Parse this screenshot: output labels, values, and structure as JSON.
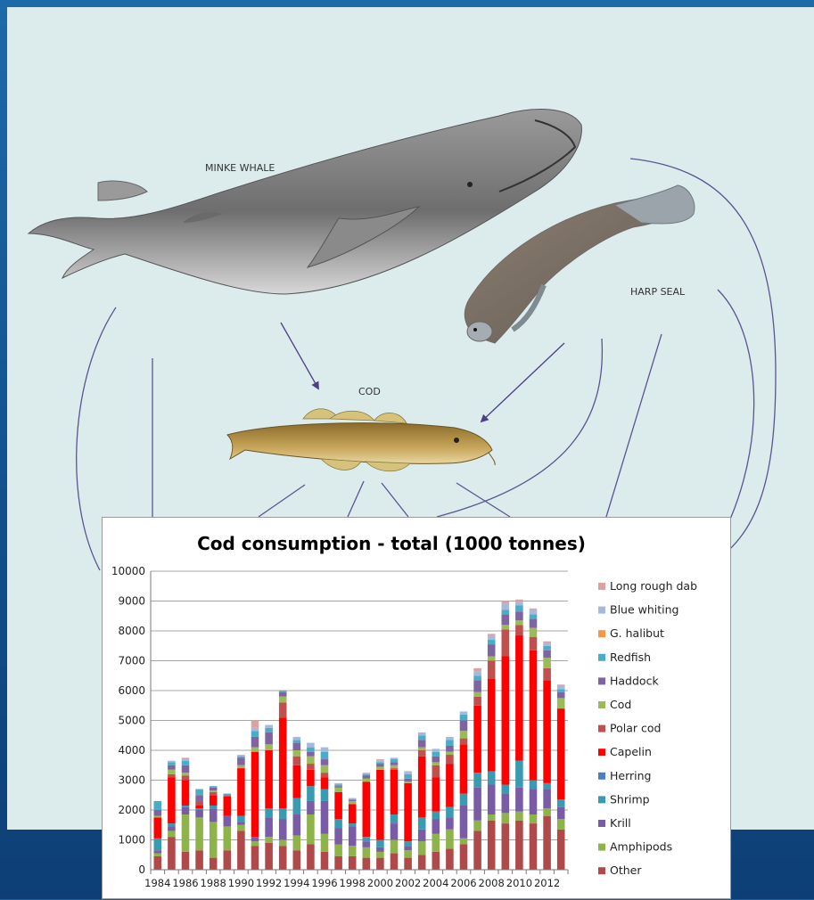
{
  "illustration": {
    "minke_label": "MINKE WHALE",
    "seal_label": "HARP SEAL",
    "cod_label": "COD"
  },
  "chart_data": {
    "type": "bar",
    "stacked": true,
    "title": "Cod consumption - total (1000 tonnes)",
    "ylim": [
      0,
      10000
    ],
    "yticks": [
      0,
      1000,
      2000,
      3000,
      4000,
      5000,
      6000,
      7000,
      8000,
      9000,
      10000
    ],
    "grid": true,
    "legend_position": "right",
    "x_tick_labels": [
      "1984",
      "1986",
      "1988",
      "1990",
      "1992",
      "1994",
      "1996",
      "1998",
      "2000",
      "2002",
      "2004",
      "2006",
      "2008",
      "2010",
      "2012"
    ],
    "categories": [
      1984,
      1985,
      1986,
      1987,
      1988,
      1989,
      1990,
      1991,
      1992,
      1993,
      1994,
      1995,
      1996,
      1997,
      1998,
      1999,
      2000,
      2001,
      2002,
      2003,
      2004,
      2005,
      2006,
      2007,
      2008,
      2009,
      2010,
      2011,
      2012,
      2013
    ],
    "series": [
      {
        "name": "Other",
        "color": "#b04a4a",
        "values": [
          450,
          1100,
          600,
          650,
          400,
          650,
          1300,
          800,
          900,
          800,
          650,
          850,
          600,
          450,
          450,
          400,
          400,
          550,
          400,
          500,
          600,
          700,
          850,
          1300,
          1650,
          1550,
          1650,
          1550,
          1800,
          1350
        ]
      },
      {
        "name": "Amphipods",
        "color": "#8db34a",
        "values": [
          100,
          200,
          1250,
          1100,
          1200,
          800,
          200,
          150,
          200,
          200,
          500,
          1000,
          600,
          400,
          350,
          350,
          200,
          450,
          250,
          450,
          600,
          650,
          200,
          350,
          200,
          350,
          300,
          300,
          250,
          350
        ]
      },
      {
        "name": "Krill",
        "color": "#7a5ca6",
        "values": [
          100,
          150,
          250,
          250,
          450,
          350,
          100,
          150,
          650,
          700,
          700,
          450,
          1100,
          550,
          650,
          200,
          150,
          550,
          150,
          400,
          500,
          400,
          1100,
          1100,
          1000,
          650,
          800,
          850,
          650,
          400
        ]
      },
      {
        "name": "Shrimp",
        "color": "#3a9bb0",
        "values": [
          400,
          100,
          50,
          50,
          100,
          0,
          200,
          0,
          300,
          350,
          550,
          500,
          400,
          300,
          100,
          150,
          250,
          300,
          150,
          400,
          250,
          350,
          400,
          500,
          450,
          300,
          900,
          300,
          200,
          250
        ]
      },
      {
        "name": "Herring",
        "color": "#4a7fc4",
        "values": [
          0,
          0,
          0,
          0,
          0,
          0,
          0,
          0,
          0,
          0,
          0,
          0,
          0,
          0,
          0,
          0,
          0,
          0,
          0,
          0,
          0,
          0,
          0,
          0,
          0,
          0,
          0,
          0,
          0,
          0
        ]
      },
      {
        "name": "Capelin",
        "color": "#ff0000",
        "values": [
          700,
          1550,
          850,
          100,
          350,
          650,
          1600,
          2850,
          1950,
          3050,
          1100,
          550,
          400,
          900,
          650,
          1850,
          2350,
          1500,
          1950,
          2050,
          1150,
          1450,
          1650,
          2250,
          3100,
          4300,
          4200,
          4350,
          3450,
          3050
        ]
      },
      {
        "name": "Polar cod",
        "color": "#c0504d",
        "values": [
          0,
          100,
          150,
          150,
          100,
          0,
          0,
          0,
          0,
          500,
          300,
          200,
          150,
          0,
          0,
          0,
          0,
          50,
          0,
          200,
          400,
          300,
          200,
          300,
          600,
          900,
          350,
          450,
          400,
          0
        ]
      },
      {
        "name": "Cod",
        "color": "#9bbb59",
        "values": [
          50,
          150,
          100,
          0,
          50,
          0,
          100,
          150,
          200,
          200,
          200,
          250,
          250,
          150,
          100,
          100,
          100,
          100,
          50,
          100,
          100,
          100,
          250,
          150,
          150,
          150,
          150,
          300,
          350,
          350
        ]
      },
      {
        "name": "Haddock",
        "color": "#8064a2",
        "values": [
          200,
          150,
          250,
          200,
          100,
          50,
          250,
          350,
          400,
          150,
          250,
          150,
          200,
          50,
          50,
          100,
          100,
          100,
          100,
          250,
          200,
          200,
          350,
          400,
          400,
          350,
          300,
          300,
          250,
          200
        ]
      },
      {
        "name": "Redfish",
        "color": "#4bacc6",
        "values": [
          300,
          100,
          150,
          200,
          50,
          50,
          50,
          200,
          150,
          50,
          100,
          150,
          250,
          50,
          0,
          50,
          50,
          100,
          150,
          150,
          150,
          200,
          200,
          150,
          150,
          150,
          200,
          150,
          150,
          100
        ]
      },
      {
        "name": "G. halibut",
        "color": "#f79646",
        "values": [
          0,
          0,
          0,
          0,
          0,
          0,
          0,
          0,
          0,
          0,
          0,
          0,
          0,
          0,
          0,
          0,
          0,
          0,
          0,
          0,
          0,
          0,
          0,
          0,
          0,
          0,
          0,
          0,
          0,
          0
        ]
      },
      {
        "name": "Blue whiting",
        "color": "#a5b9dc",
        "values": [
          0,
          50,
          50,
          0,
          0,
          0,
          50,
          100,
          100,
          0,
          100,
          150,
          150,
          50,
          50,
          50,
          50,
          50,
          100,
          100,
          100,
          100,
          100,
          150,
          150,
          200,
          100,
          150,
          100,
          100
        ]
      },
      {
        "name": "Long rough dab",
        "color": "#d9a3a3",
        "values": [
          0,
          0,
          50,
          0,
          0,
          0,
          0,
          250,
          0,
          0,
          0,
          0,
          0,
          0,
          0,
          0,
          50,
          0,
          0,
          0,
          0,
          0,
          0,
          100,
          50,
          100,
          100,
          50,
          50,
          50
        ]
      }
    ]
  }
}
